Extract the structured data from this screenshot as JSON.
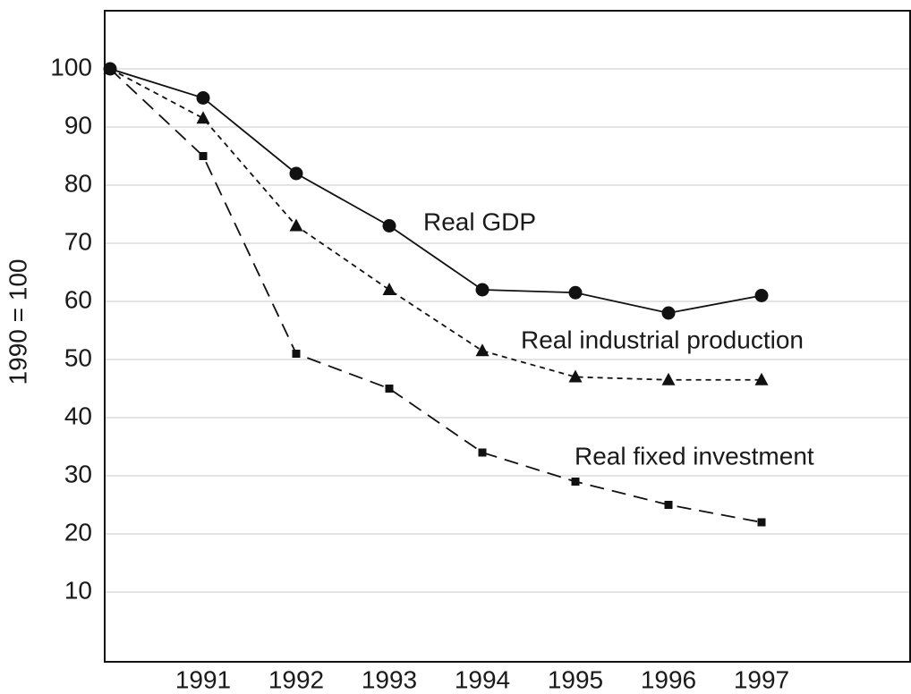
{
  "chart_data": {
    "type": "line",
    "y_label": "1990 = 100",
    "categories": [
      null,
      "1991",
      "1992",
      "1993",
      "1994",
      "1995",
      "1996",
      "1997"
    ],
    "ylim": [
      -2,
      110
    ],
    "yticks": [
      10,
      20,
      30,
      40,
      50,
      60,
      70,
      80,
      90,
      100
    ],
    "grid": true,
    "series": [
      {
        "name": "Real GDP",
        "color": "#111111",
        "marker": "circle",
        "dash": "solid",
        "values": [
          100,
          95,
          82,
          73,
          62,
          61.5,
          58,
          61
        ]
      },
      {
        "name": "Real industrial production",
        "color": "#111111",
        "marker": "triangle",
        "dash": "short",
        "values": [
          100,
          91.5,
          73,
          62,
          51.5,
          47,
          46.5,
          46.5
        ]
      },
      {
        "name": "Real fixed investment",
        "color": "#111111",
        "marker": "square",
        "dash": "long",
        "values": [
          100,
          85,
          51,
          45,
          34,
          29,
          25,
          22
        ]
      }
    ]
  }
}
